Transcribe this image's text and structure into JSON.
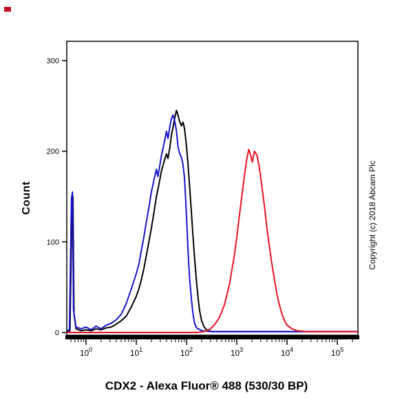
{
  "chart_data": {
    "type": "line",
    "subtype": "flow-cytometry-histogram",
    "title": "CDX2 - Alexa Fluor® 488 (530/30 BP)",
    "ylabel": "Count",
    "copyright": "Copyright (c) 2018 Abcam Plc",
    "x_axis": {
      "scale": "log10",
      "tick_exponents": [
        0,
        1,
        2,
        3,
        4,
        5
      ],
      "decade_view_min": -0.38,
      "decade_view_max": 5.41,
      "grid": false
    },
    "y_axis": {
      "min": 0,
      "max": 300,
      "ticks": [
        0,
        100,
        200,
        300
      ],
      "grid": false
    },
    "series": [
      {
        "name": "black",
        "color": "#000000",
        "peak_count": 245,
        "points": [
          [
            -0.38,
            1
          ],
          [
            -0.32,
            2
          ],
          [
            -0.28,
            140
          ],
          [
            -0.26,
            150
          ],
          [
            -0.24,
            20
          ],
          [
            -0.2,
            4
          ],
          [
            -0.1,
            2
          ],
          [
            0.0,
            3
          ],
          [
            0.1,
            2
          ],
          [
            0.2,
            4
          ],
          [
            0.3,
            3
          ],
          [
            0.4,
            5
          ],
          [
            0.5,
            6
          ],
          [
            0.6,
            9
          ],
          [
            0.7,
            13
          ],
          [
            0.8,
            18
          ],
          [
            0.9,
            28
          ],
          [
            1.0,
            40
          ],
          [
            1.05,
            48
          ],
          [
            1.1,
            58
          ],
          [
            1.15,
            70
          ],
          [
            1.2,
            85
          ],
          [
            1.25,
            100
          ],
          [
            1.3,
            115
          ],
          [
            1.35,
            132
          ],
          [
            1.4,
            150
          ],
          [
            1.45,
            163
          ],
          [
            1.5,
            178
          ],
          [
            1.55,
            188
          ],
          [
            1.6,
            197
          ],
          [
            1.63,
            192
          ],
          [
            1.67,
            205
          ],
          [
            1.7,
            218
          ],
          [
            1.73,
            226
          ],
          [
            1.77,
            238
          ],
          [
            1.8,
            245
          ],
          [
            1.83,
            240
          ],
          [
            1.86,
            233
          ],
          [
            1.9,
            228
          ],
          [
            1.93,
            232
          ],
          [
            1.96,
            225
          ],
          [
            2.0,
            205
          ],
          [
            2.03,
            185
          ],
          [
            2.06,
            162
          ],
          [
            2.1,
            130
          ],
          [
            2.13,
            105
          ],
          [
            2.16,
            82
          ],
          [
            2.2,
            55
          ],
          [
            2.23,
            38
          ],
          [
            2.26,
            24
          ],
          [
            2.3,
            13
          ],
          [
            2.35,
            6
          ],
          [
            2.4,
            3
          ],
          [
            2.5,
            1
          ],
          [
            3.0,
            1
          ],
          [
            4.0,
            1
          ],
          [
            5.41,
            1
          ]
        ]
      },
      {
        "name": "blue",
        "color": "#1414cc",
        "peak_count": 240,
        "points": [
          [
            -0.38,
            2
          ],
          [
            -0.33,
            3
          ],
          [
            -0.29,
            148
          ],
          [
            -0.27,
            155
          ],
          [
            -0.25,
            25
          ],
          [
            -0.2,
            6
          ],
          [
            -0.1,
            4
          ],
          [
            0.0,
            6
          ],
          [
            0.1,
            3
          ],
          [
            0.2,
            7
          ],
          [
            0.3,
            4
          ],
          [
            0.4,
            8
          ],
          [
            0.5,
            10
          ],
          [
            0.6,
            14
          ],
          [
            0.7,
            20
          ],
          [
            0.8,
            32
          ],
          [
            0.9,
            48
          ],
          [
            1.0,
            65
          ],
          [
            1.05,
            75
          ],
          [
            1.1,
            90
          ],
          [
            1.15,
            105
          ],
          [
            1.2,
            122
          ],
          [
            1.25,
            138
          ],
          [
            1.3,
            155
          ],
          [
            1.35,
            168
          ],
          [
            1.4,
            180
          ],
          [
            1.43,
            172
          ],
          [
            1.47,
            185
          ],
          [
            1.5,
            195
          ],
          [
            1.55,
            208
          ],
          [
            1.6,
            222
          ],
          [
            1.63,
            214
          ],
          [
            1.67,
            228
          ],
          [
            1.7,
            236
          ],
          [
            1.73,
            240
          ],
          [
            1.77,
            232
          ],
          [
            1.8,
            222
          ],
          [
            1.83,
            205
          ],
          [
            1.86,
            198
          ],
          [
            1.9,
            193
          ],
          [
            1.93,
            185
          ],
          [
            1.96,
            170
          ],
          [
            2.0,
            128
          ],
          [
            2.03,
            90
          ],
          [
            2.06,
            60
          ],
          [
            2.1,
            35
          ],
          [
            2.13,
            20
          ],
          [
            2.16,
            10
          ],
          [
            2.2,
            5
          ],
          [
            2.3,
            2
          ],
          [
            2.5,
            1
          ],
          [
            3.5,
            1
          ],
          [
            5.41,
            1
          ]
        ]
      },
      {
        "name": "red",
        "color": "#e81123",
        "peak_count": 202,
        "points": [
          [
            -0.38,
            0
          ],
          [
            2.2,
            0
          ],
          [
            2.35,
            1
          ],
          [
            2.45,
            3
          ],
          [
            2.55,
            8
          ],
          [
            2.65,
            16
          ],
          [
            2.75,
            30
          ],
          [
            2.85,
            52
          ],
          [
            2.9,
            68
          ],
          [
            2.95,
            85
          ],
          [
            3.0,
            105
          ],
          [
            3.05,
            128
          ],
          [
            3.1,
            150
          ],
          [
            3.15,
            172
          ],
          [
            3.2,
            192
          ],
          [
            3.24,
            202
          ],
          [
            3.28,
            195
          ],
          [
            3.31,
            188
          ],
          [
            3.35,
            200
          ],
          [
            3.4,
            196
          ],
          [
            3.44,
            185
          ],
          [
            3.48,
            170
          ],
          [
            3.52,
            152
          ],
          [
            3.56,
            135
          ],
          [
            3.6,
            115
          ],
          [
            3.65,
            95
          ],
          [
            3.7,
            75
          ],
          [
            3.75,
            58
          ],
          [
            3.8,
            42
          ],
          [
            3.85,
            30
          ],
          [
            3.9,
            20
          ],
          [
            3.95,
            13
          ],
          [
            4.0,
            8
          ],
          [
            4.1,
            4
          ],
          [
            4.2,
            2
          ],
          [
            4.4,
            1
          ],
          [
            5.41,
            1
          ]
        ]
      }
    ]
  },
  "decor": {
    "corner_mark_color": "#bb1122",
    "axis_color": "#000000"
  }
}
